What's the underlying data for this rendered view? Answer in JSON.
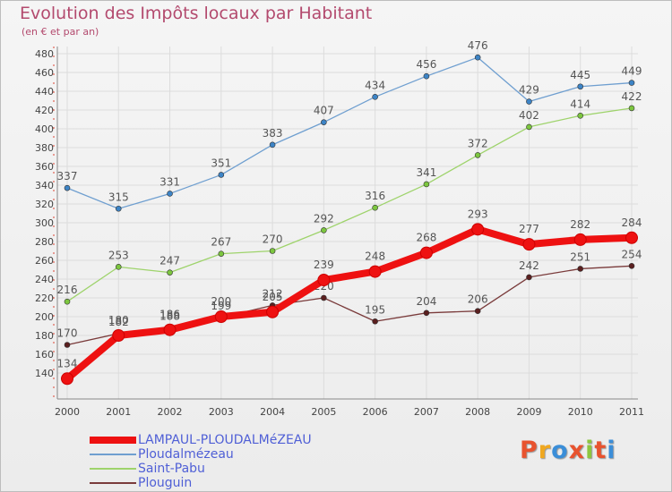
{
  "title": "Evolution des Impôts locaux par Habitant",
  "subtitle": "(en € et par an)",
  "logo": {
    "text": "Proxiti",
    "colors": [
      "#e8532f",
      "#f0a820",
      "#3b8ed8",
      "#e8532f",
      "#8dc63f",
      "#e8532f",
      "#3b8ed8"
    ]
  },
  "chart_data": {
    "type": "line",
    "x": [
      2000,
      2001,
      2002,
      2003,
      2004,
      2005,
      2006,
      2007,
      2008,
      2009,
      2010,
      2011
    ],
    "xticks": [
      "2000",
      "2001",
      "2002",
      "2003",
      "2004",
      "2005",
      "2006",
      "2007",
      "2008",
      "2009",
      "2010",
      "2011"
    ],
    "ylim": [
      120,
      480
    ],
    "yticks": [
      140,
      160,
      180,
      200,
      220,
      240,
      260,
      280,
      300,
      320,
      340,
      360,
      380,
      400,
      420,
      440,
      460,
      480
    ],
    "grid": true,
    "legend_position": "bottom-left",
    "series": [
      {
        "name": "Ploudalmézeau",
        "color": "#6f9fd0",
        "marker": "#3d84c6",
        "values": [
          337,
          315,
          331,
          351,
          383,
          407,
          434,
          456,
          476,
          429,
          445,
          449
        ]
      },
      {
        "name": "Saint-Pabu",
        "color": "#9ed36b",
        "marker": "#7cc63f",
        "values": [
          216,
          253,
          247,
          267,
          270,
          292,
          316,
          341,
          372,
          402,
          414,
          422
        ]
      },
      {
        "name": "Plouguin",
        "color": "#7a3b3b",
        "marker": "#5a1f1f",
        "values": [
          170,
          182,
          188,
          199,
          212,
          220,
          195,
          204,
          206,
          242,
          251,
          254
        ]
      },
      {
        "name": "LAMPAUL-PLOUDALMéZEAU",
        "color": "#ee1111",
        "marker": "#ee1111",
        "values": [
          134,
          180,
          186,
          200,
          205,
          239,
          248,
          268,
          293,
          277,
          282,
          284
        ]
      }
    ]
  },
  "legend": [
    {
      "name": "LAMPAUL-PLOUDALMéZEAU",
      "color": "#ee1111",
      "text_color": "#4f5fd6"
    },
    {
      "name": "Ploudalmézeau",
      "color": "#6f9fd0",
      "text_color": "#4f5fd6"
    },
    {
      "name": "Saint-Pabu",
      "color": "#9ed36b",
      "text_color": "#4f5fd6"
    },
    {
      "name": "Plouguin",
      "color": "#7a3b3b",
      "text_color": "#4f5fd6"
    }
  ]
}
